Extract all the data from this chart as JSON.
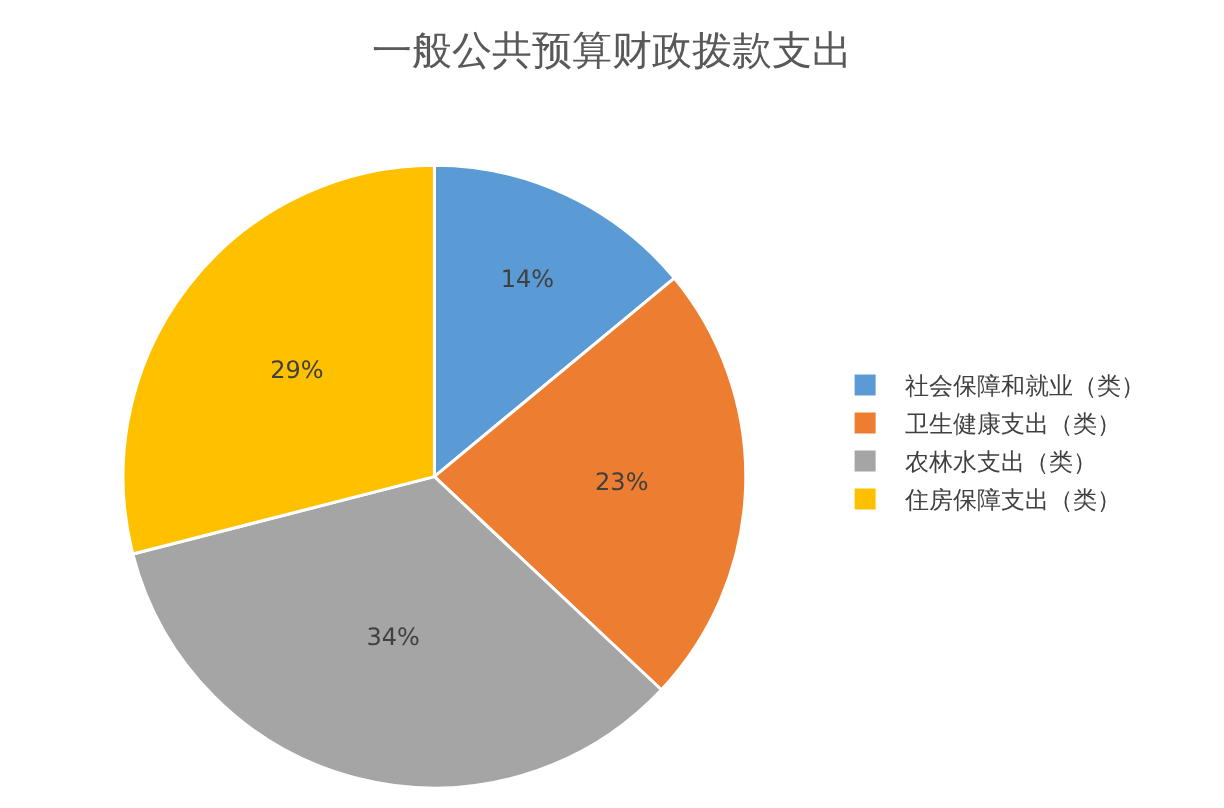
{
  "chart_data": {
    "type": "pie",
    "title": "一般公共预算财政拨款支出",
    "categories": [
      "社会保障和就业（类）",
      "卫生健康支出（类）",
      "农林水支出（类）",
      "住房保障支出（类）"
    ],
    "values": [
      14,
      23,
      34,
      29
    ],
    "value_labels": [
      "14%",
      "23%",
      "34%",
      "29%"
    ],
    "colors": [
      "#5b9bd5",
      "#ed7d31",
      "#a5a5a5",
      "#ffc000"
    ],
    "legend": "right"
  }
}
